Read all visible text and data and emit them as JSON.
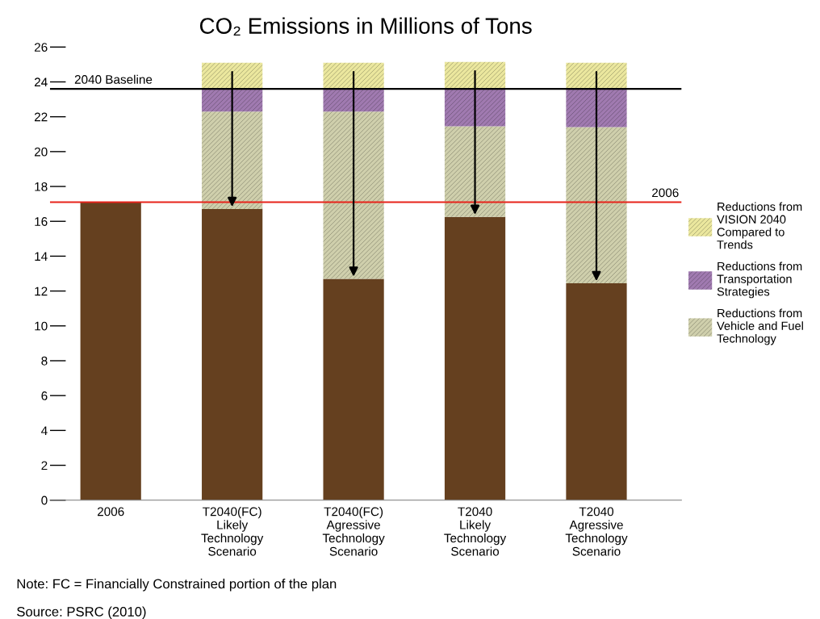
{
  "chart_data": {
    "type": "bar",
    "stacked": true,
    "title": "CO₂ Emissions in Millions of Tons",
    "categories": [
      "2006",
      "T2040(FC)\nLikely\nTechnology\nScenario",
      "T2040(FC)\nAgressive\nTechnology\nScenario",
      "T2040\nLikely\nTechnology\nScenario",
      "T2040\nAgressive\nTechnology\nScenario"
    ],
    "series": [
      {
        "color": "#65401f",
        "values": [
          17.1,
          16.7,
          12.7,
          16.25,
          12.45
        ]
      },
      {
        "name": "Reductions from\nVehicle and Fuel\nTechnology",
        "color": "#cfcfac",
        "values": [
          0,
          5.6,
          9.6,
          5.2,
          8.95
        ]
      },
      {
        "name": "Reductions from\nTransportation\nStrategies",
        "color": "#a07ab0",
        "values": [
          0,
          1.3,
          1.3,
          2.2,
          2.2
        ]
      },
      {
        "name": "Reductions from\nVISION 2040\nCompared to\nTrends",
        "color": "#ebe79e",
        "values": [
          0,
          1.5,
          1.5,
          1.5,
          1.5
        ]
      }
    ],
    "ylim": [
      0,
      26
    ],
    "yticks": [
      0,
      2,
      4,
      6,
      8,
      10,
      12,
      14,
      16,
      18,
      20,
      22,
      24,
      26
    ],
    "ref_lines": [
      {
        "axis": "y",
        "value": 23.6,
        "label": "2040 Baseline",
        "color": "#000000"
      },
      {
        "axis": "y",
        "value": 17.1,
        "color": "#e8231a"
      }
    ],
    "legend": "right",
    "grid": false,
    "annotations": [
      {
        "text": "2006",
        "y": 17.1
      },
      "Note: FC = Financially Constrained portion of the plan",
      "Source: PSRC (2010)"
    ]
  }
}
